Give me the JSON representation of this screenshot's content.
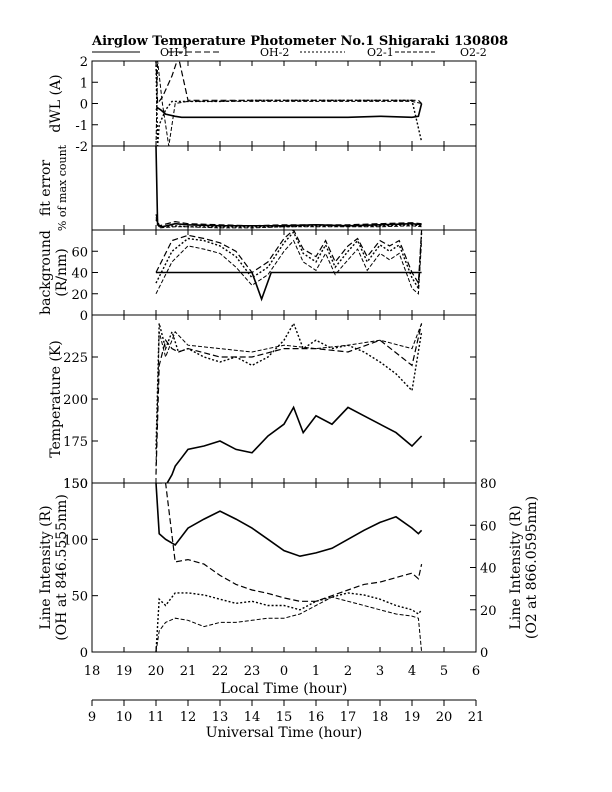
{
  "title": "Airglow Temperature Photometer No.1   Shigaraki   130808",
  "legend": [
    {
      "label": "OH-1",
      "dash": "none"
    },
    {
      "label": "OH-2",
      "dash": "6,3"
    },
    {
      "label": "O2-1",
      "dash": "2,2"
    },
    {
      "label": "O2-2",
      "dash": "4,2"
    }
  ],
  "x_axes": {
    "local": {
      "label": "Local Time (hour)",
      "ticks": [
        "18",
        "19",
        "20",
        "21",
        "22",
        "23",
        "0",
        "1",
        "2",
        "3",
        "4",
        "5",
        "6"
      ]
    },
    "universal": {
      "label": "Universal Time (hour)",
      "ticks": [
        "9",
        "10",
        "11",
        "12",
        "13",
        "14",
        "15",
        "16",
        "17",
        "18",
        "19",
        "20",
        "21"
      ]
    }
  },
  "panels": [
    {
      "ylabel": "dWL (A)",
      "ylabel2": "",
      "ticks": [
        "2",
        "1",
        "0",
        "-1",
        "-2"
      ],
      "right_label": "",
      "right_ticks": []
    },
    {
      "ylabel": "fit error",
      "ylabel2": "% of max count",
      "ticks": [],
      "right_label": "",
      "right_ticks": []
    },
    {
      "ylabel": "background",
      "ylabel2": "(R/nm)",
      "ticks": [
        "60",
        "40",
        "20",
        "0"
      ],
      "right_label": "",
      "right_ticks": []
    },
    {
      "ylabel": "Temperature (K)",
      "ylabel2": "",
      "ticks": [
        "225",
        "200",
        "175",
        "150"
      ],
      "right_label": "",
      "right_ticks": []
    },
    {
      "ylabel": "Line Intensity (R)",
      "ylabel2": "(OH at 846.5555nm)",
      "ticks": [
        "150",
        "100",
        "50",
        "0"
      ],
      "right_label": "Line Intensity (R)",
      "right_label2": "(O2 at 866.0595nm)",
      "right_ticks": [
        "80",
        "60",
        "40",
        "20",
        "0"
      ]
    }
  ],
  "chart_data": {
    "type": "line",
    "x_unit": "Local Time (hour)",
    "xlim": [
      18,
      30
    ],
    "panels": [
      {
        "name": "dWL (A)",
        "ylim": [
          -2,
          2
        ],
        "series": [
          {
            "name": "OH-1",
            "x": [
              20.0,
              20.05,
              20.15,
              20.3,
              20.6,
              20.8,
              21,
              22,
              23,
              24,
              25,
              26,
              27,
              28,
              28.2,
              28.3
            ],
            "y": [
              -0.3,
              -0.2,
              -0.3,
              -0.5,
              -0.6,
              -0.65,
              -0.65,
              -0.65,
              -0.65,
              -0.65,
              -0.65,
              -0.65,
              -0.6,
              -0.65,
              -0.6,
              0.0
            ]
          },
          {
            "name": "OH-2",
            "x": [
              20.0,
              20.05,
              20.2,
              20.5,
              20.7,
              21,
              22,
              23,
              24,
              25,
              26,
              27,
              28,
              28.2,
              28.3
            ],
            "y": [
              2.0,
              0.0,
              0.3,
              1.3,
              2.2,
              0.15,
              0.15,
              0.15,
              0.15,
              0.15,
              0.15,
              0.15,
              0.15,
              0.15,
              0.0
            ]
          },
          {
            "name": "O2-1",
            "x": [
              20.0,
              20.05,
              20.1,
              20.3,
              20.5,
              20.7,
              21,
              22,
              23,
              24,
              25,
              26,
              27,
              28,
              28.3
            ],
            "y": [
              2.0,
              -2.0,
              -1.0,
              -0.3,
              0.1,
              0.1,
              0.1,
              0.1,
              0.15,
              0.15,
              0.15,
              0.15,
              0.15,
              0.15,
              -1.8
            ]
          },
          {
            "name": "O2-2",
            "x": [
              20.0,
              20.05,
              20.2,
              20.4,
              20.6,
              21,
              22,
              23,
              24,
              25,
              26,
              27,
              28,
              28.3
            ],
            "y": [
              -2.0,
              2.0,
              0.0,
              -2.0,
              0.0,
              0.1,
              0.1,
              0.1,
              0.1,
              0.1,
              0.1,
              0.1,
              0.1,
              0.0
            ]
          }
        ]
      },
      {
        "name": "fit error",
        "ylim": [
          0,
          8
        ],
        "series": [
          {
            "name": "OH-1",
            "x": [
              20.0,
              20.05,
              20.2,
              20.6,
              21,
              22,
              23,
              24,
              25,
              26,
              27,
              28,
              28.3
            ],
            "y": [
              8.0,
              0.5,
              0.3,
              0.6,
              0.5,
              0.4,
              0.4,
              0.4,
              0.5,
              0.4,
              0.5,
              0.6,
              0.5
            ]
          },
          {
            "name": "OH-2",
            "x": [
              20.0,
              20.1,
              20.6,
              21,
              22,
              23,
              24,
              25,
              26,
              27,
              28,
              28.3
            ],
            "y": [
              1.5,
              0.4,
              0.8,
              0.6,
              0.5,
              0.4,
              0.5,
              0.5,
              0.5,
              0.6,
              0.7,
              0.6
            ]
          },
          {
            "name": "O2-1",
            "x": [
              20.0,
              20.1,
              20.6,
              21,
              22,
              23,
              24,
              25,
              26,
              27,
              28,
              28.3
            ],
            "y": [
              1.0,
              0.3,
              0.4,
              0.3,
              0.3,
              0.3,
              0.3,
              0.4,
              0.4,
              0.4,
              0.5,
              0.4
            ]
          },
          {
            "name": "O2-2",
            "x": [
              20.0,
              20.1,
              20.6,
              21,
              22,
              23,
              24,
              25,
              26,
              27,
              28,
              28.3
            ],
            "y": [
              1.2,
              0.2,
              0.3,
              0.3,
              0.2,
              0.2,
              0.3,
              0.3,
              0.3,
              0.3,
              0.4,
              0.3
            ]
          }
        ]
      },
      {
        "name": "background (R/nm)",
        "ylim": [
          0,
          80
        ],
        "series": [
          {
            "name": "OH-1",
            "x": [
              20.0,
              20.05,
              20.3,
              20.5,
              20.8,
              21.5,
              22,
              22.5,
              23,
              23.3,
              23.6,
              24,
              24.3,
              24.5,
              25,
              25.5,
              26,
              26.5,
              27,
              27.5,
              28,
              28.3
            ],
            "y": [
              40,
              40,
              40,
              40,
              40,
              40,
              40,
              40,
              40,
              15,
              40,
              40,
              40,
              40,
              40,
              40,
              40,
              40,
              40,
              40,
              40,
              40
            ]
          },
          {
            "name": "OH-2",
            "x": [
              20.0,
              20.5,
              21,
              21.5,
              22,
              22.5,
              23,
              23.5,
              24,
              24.3,
              24.6,
              25,
              25.3,
              25.6,
              26,
              26.3,
              26.6,
              27,
              27.3,
              27.6,
              28,
              28.2,
              28.3
            ],
            "y": [
              40,
              70,
              75,
              72,
              68,
              60,
              40,
              50,
              72,
              80,
              62,
              55,
              70,
              50,
              65,
              72,
              55,
              70,
              65,
              70,
              40,
              30,
              80
            ]
          },
          {
            "name": "O2-1",
            "x": [
              20.0,
              20.5,
              21,
              21.5,
              22,
              22.5,
              23,
              23.5,
              24,
              24.3,
              24.6,
              25,
              25.3,
              25.6,
              26,
              26.3,
              26.6,
              27,
              27.3,
              27.6,
              28,
              28.2,
              28.3
            ],
            "y": [
              30,
              60,
              72,
              70,
              65,
              55,
              35,
              45,
              68,
              78,
              58,
              50,
              66,
              45,
              60,
              70,
              50,
              66,
              60,
              66,
              35,
              25,
              78
            ]
          },
          {
            "name": "O2-2",
            "x": [
              20.0,
              20.5,
              21,
              21.5,
              22,
              22.5,
              23,
              23.5,
              24,
              24.3,
              24.6,
              25,
              25.3,
              25.6,
              26,
              26.3,
              26.6,
              27,
              27.3,
              27.6,
              28,
              28.2,
              28.3
            ],
            "y": [
              20,
              50,
              65,
              62,
              58,
              45,
              28,
              38,
              60,
              70,
              50,
              42,
              58,
              38,
              52,
              62,
              42,
              58,
              52,
              58,
              25,
              20,
              70
            ]
          }
        ]
      },
      {
        "name": "Temperature (K)",
        "ylim": [
          150,
          250
        ],
        "series": [
          {
            "name": "OH-1",
            "x": [
              20.0,
              20.2,
              20.5,
              20.6,
              20.8,
              21,
              21.5,
              22,
              22.5,
              23,
              23.5,
              24,
              24.3,
              24.6,
              25,
              25.5,
              26,
              26.5,
              27,
              27.5,
              28,
              28.3
            ],
            "y": [
              150,
              145,
              155,
              160,
              165,
              170,
              172,
              175,
              170,
              168,
              178,
              185,
              195,
              180,
              190,
              185,
              195,
              190,
              185,
              180,
              172,
              178
            ]
          },
          {
            "name": "OH-2",
            "x": [
              20.0,
              20.1,
              20.3,
              20.5,
              20.7,
              21,
              22,
              23,
              24,
              25,
              26,
              27,
              28,
              28.3
            ],
            "y": [
              155,
              220,
              235,
              230,
              228,
              230,
              225,
              225,
              230,
              230,
              228,
              235,
              220,
              245
            ]
          },
          {
            "name": "O2-1",
            "x": [
              20.0,
              20.1,
              20.3,
              20.5,
              20.7,
              21,
              21.5,
              22,
              22.5,
              23,
              23.5,
              24,
              24.3,
              24.6,
              25,
              25.5,
              26,
              26.5,
              27,
              27.5,
              28,
              28.3
            ],
            "y": [
              170,
              245,
              230,
              240,
              228,
              230,
              225,
              222,
              225,
              220,
              225,
              235,
              245,
              230,
              235,
              230,
              232,
              228,
              222,
              215,
              205,
              240
            ]
          },
          {
            "name": "O2-2",
            "x": [
              20.0,
              20.1,
              20.3,
              20.6,
              21,
              22,
              23,
              24,
              25,
              26,
              27,
              28,
              28.3
            ],
            "y": [
              160,
              240,
              225,
              240,
              232,
              230,
              228,
              232,
              230,
              232,
              235,
              230,
              245
            ]
          }
        ]
      },
      {
        "name": "Line Intensity (R)",
        "ylim": [
          0,
          150
        ],
        "y2lim": [
          0,
          80
        ],
        "series": [
          {
            "name": "OH-1",
            "axis": "left",
            "x": [
              20.0,
              20.1,
              20.3,
              20.6,
              21,
              21.5,
              22,
              22.5,
              23,
              23.5,
              24,
              24.5,
              25,
              25.5,
              26,
              26.5,
              27,
              27.5,
              28,
              28.2,
              28.3
            ],
            "y": [
              150,
              105,
              100,
              95,
              110,
              118,
              125,
              118,
              110,
              100,
              90,
              85,
              88,
              92,
              100,
              108,
              115,
              120,
              110,
              105,
              108
            ]
          },
          {
            "name": "OH-2",
            "axis": "left",
            "x": [
              20.0,
              20.1,
              20.3,
              20.6,
              21,
              21.5,
              22,
              22.5,
              23,
              23.5,
              24,
              24.5,
              25,
              25.5,
              26,
              26.5,
              27,
              27.5,
              28,
              28.2,
              28.3
            ],
            "y": [
              150,
              150,
              150,
              80,
              82,
              78,
              68,
              60,
              55,
              52,
              48,
              45,
              45,
              50,
              55,
              60,
              62,
              66,
              70,
              65,
              78
            ]
          },
          {
            "name": "O2-1",
            "axis": "right",
            "x": [
              20.0,
              20.1,
              20.3,
              20.6,
              21,
              21.5,
              22,
              22.5,
              23,
              23.5,
              24,
              24.5,
              25,
              25.5,
              26,
              26.5,
              27,
              27.5,
              28,
              28.2,
              28.3
            ],
            "y": [
              0,
              25,
              22,
              28,
              28,
              27,
              25,
              23,
              24,
              22,
              22,
              20,
              24,
              26,
              28,
              27,
              25,
              22,
              20,
              18,
              20
            ]
          },
          {
            "name": "O2-2",
            "axis": "right",
            "x": [
              20.0,
              20.1,
              20.3,
              20.6,
              21,
              21.5,
              22,
              22.5,
              23,
              23.5,
              24,
              24.5,
              25,
              25.5,
              26,
              26.5,
              27,
              27.5,
              28,
              28.2,
              28.3
            ],
            "y": [
              0,
              10,
              14,
              16,
              15,
              12,
              14,
              14,
              15,
              16,
              16,
              18,
              22,
              26,
              24,
              22,
              20,
              18,
              17,
              16,
              0
            ]
          }
        ]
      }
    ]
  },
  "colors": {
    "axis": "#000000",
    "series": "#000000",
    "background": "#ffffff"
  }
}
